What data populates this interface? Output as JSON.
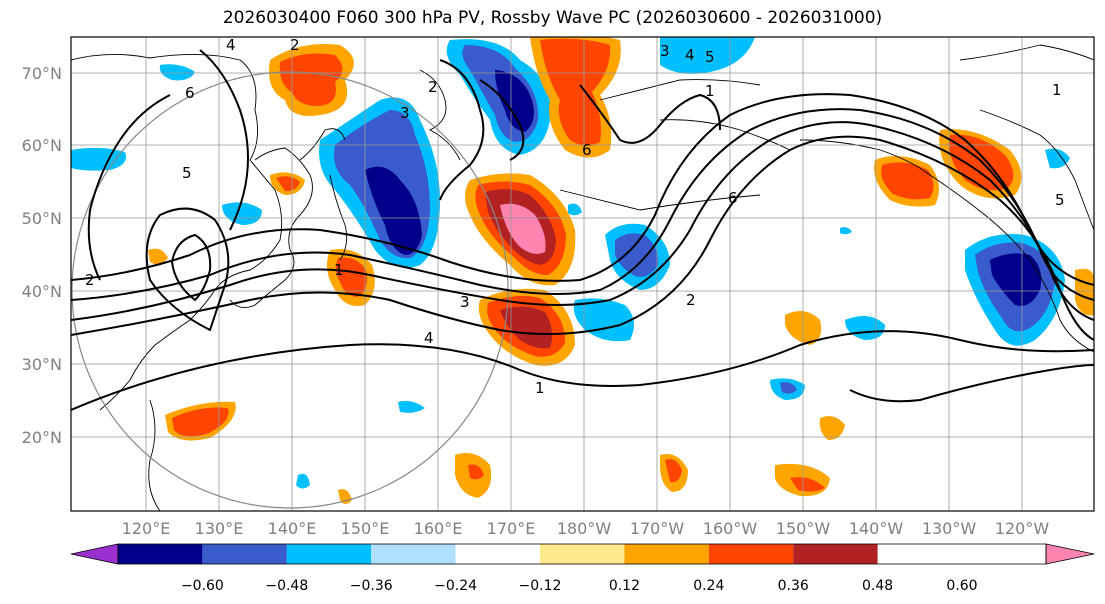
{
  "title": "2026030400 F060 300 hPa PV, Rossby Wave PC (2026030600 - 2026031000)",
  "lat_labels": [
    "70°N",
    "60°N",
    "50°N",
    "40°N",
    "30°N",
    "20°N"
  ],
  "lon_labels": [
    "120°E",
    "130°E",
    "140°E",
    "150°E",
    "160°E",
    "170°E",
    "180°W",
    "170°W",
    "160°W",
    "150°W",
    "140°W",
    "130°W",
    "120°W"
  ],
  "colorbar": {
    "colors": [
      "#9b30d0",
      "#00008b",
      "#3a5bcc",
      "#00bfff",
      "#b0e0ff",
      "#ffffff",
      "#ffe98a",
      "#ffa500",
      "#ff4500",
      "#b22222",
      "#ff85b0"
    ],
    "tick_labels": [
      "−0.60",
      "−0.48",
      "−0.36",
      "−0.24",
      "−0.12",
      "0.12",
      "0.24",
      "0.36",
      "0.48",
      "0.60"
    ]
  },
  "contour_labels": [
    "4",
    "2",
    "1",
    "3",
    "6",
    "5",
    "4",
    "6",
    "5",
    "2",
    "3",
    "1",
    "4",
    "3",
    "2",
    "1",
    "6",
    "2",
    "1",
    "5"
  ]
}
